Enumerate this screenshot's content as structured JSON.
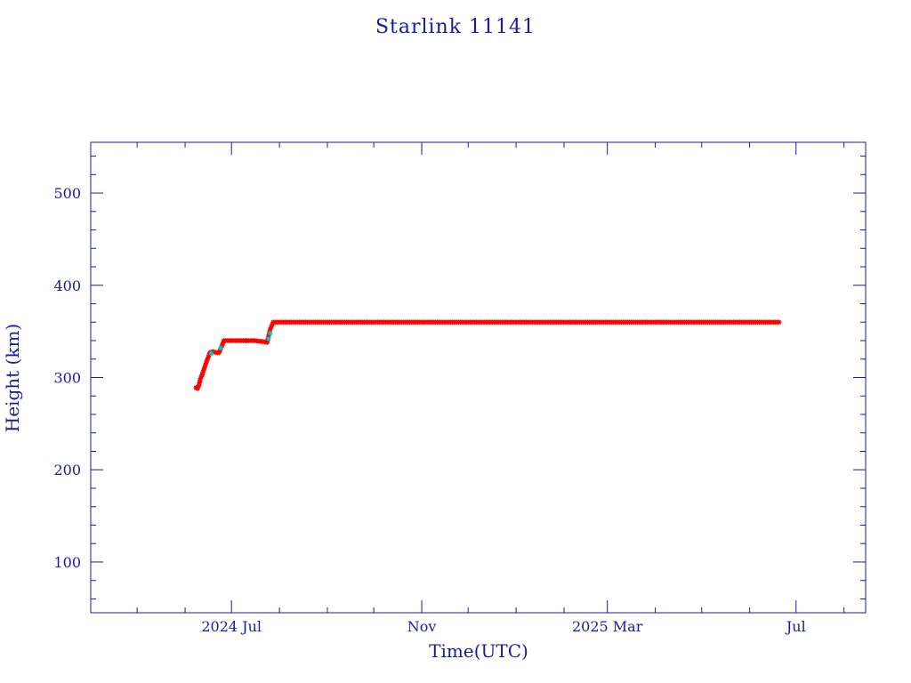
{
  "chart_data": {
    "type": "scatter",
    "title": "Starlink 11141",
    "xlabel": "Time(UTC)",
    "ylabel": "Height (km)",
    "x_axis_type": "date",
    "xlim": [
      "2024-04-01",
      "2025-08-15"
    ],
    "ylim": [
      45,
      555
    ],
    "x_ticks": [
      {
        "date": "2024-07-01",
        "label": "2024 Jul"
      },
      {
        "date": "2024-11-01",
        "label": "Nov"
      },
      {
        "date": "2025-03-01",
        "label": "2025 Mar"
      },
      {
        "date": "2025-07-01",
        "label": "Jul"
      }
    ],
    "x_minor_ticks": [
      "2024-05-01",
      "2024-06-01",
      "2024-08-01",
      "2024-09-01",
      "2024-10-01",
      "2024-12-01",
      "2025-01-01",
      "2025-02-01",
      "2025-04-01",
      "2025-05-01",
      "2025-06-01",
      "2025-08-01"
    ],
    "y_ticks": [
      100,
      200,
      300,
      400,
      500
    ],
    "y_minor_step": 20,
    "grid": false,
    "colors": {
      "axis": "#1a1aa0",
      "primary_series": "#ff0000",
      "secondary_series": "#00c8c8",
      "dark_marker": "#333333"
    },
    "series": [
      {
        "color": "#ff0000",
        "marker": "*",
        "points": [
          {
            "x": "2024-06-08",
            "y": 289
          },
          {
            "x": "2024-06-09",
            "y": 288
          },
          {
            "x": "2024-06-10",
            "y": 292
          },
          {
            "x": "2024-06-11",
            "y": 299
          },
          {
            "x": "2024-06-12",
            "y": 303
          },
          {
            "x": "2024-06-13",
            "y": 308
          },
          {
            "x": "2024-06-14",
            "y": 313
          },
          {
            "x": "2024-06-15",
            "y": 318
          },
          {
            "x": "2024-06-16",
            "y": 322
          },
          {
            "x": "2024-06-17",
            "y": 327
          },
          {
            "x": "2024-06-19",
            "y": 328
          },
          {
            "x": "2024-06-21",
            "y": 327
          },
          {
            "x": "2024-06-23",
            "y": 327
          },
          {
            "x": "2024-06-25",
            "y": 335
          },
          {
            "x": "2024-06-26",
            "y": 340
          },
          {
            "x": "2024-07-01",
            "y": 340
          },
          {
            "x": "2024-07-06",
            "y": 340
          },
          {
            "x": "2024-07-11",
            "y": 340
          },
          {
            "x": "2024-07-16",
            "y": 340
          },
          {
            "x": "2024-07-21",
            "y": 339
          },
          {
            "x": "2024-07-24",
            "y": 338
          },
          {
            "x": "2024-07-26",
            "y": 352
          },
          {
            "x": "2024-07-28",
            "y": 360
          },
          {
            "x": "2024-08-10",
            "y": 360
          },
          {
            "x": "2024-09-01",
            "y": 360
          },
          {
            "x": "2024-10-01",
            "y": 360
          },
          {
            "x": "2024-11-01",
            "y": 360
          },
          {
            "x": "2024-12-01",
            "y": 360
          },
          {
            "x": "2025-01-01",
            "y": 360
          },
          {
            "x": "2025-02-01",
            "y": 360
          },
          {
            "x": "2025-03-01",
            "y": 360
          },
          {
            "x": "2025-04-01",
            "y": 360
          },
          {
            "x": "2025-05-01",
            "y": 360
          },
          {
            "x": "2025-06-01",
            "y": 360
          },
          {
            "x": "2025-06-20",
            "y": 360
          }
        ]
      },
      {
        "color": "#00c8c8",
        "marker": "*",
        "points": [
          {
            "x": "2024-06-18",
            "y": 326
          },
          {
            "x": "2024-06-24",
            "y": 332
          },
          {
            "x": "2024-07-25",
            "y": 342
          },
          {
            "x": "2024-07-26",
            "y": 348
          }
        ]
      }
    ]
  }
}
